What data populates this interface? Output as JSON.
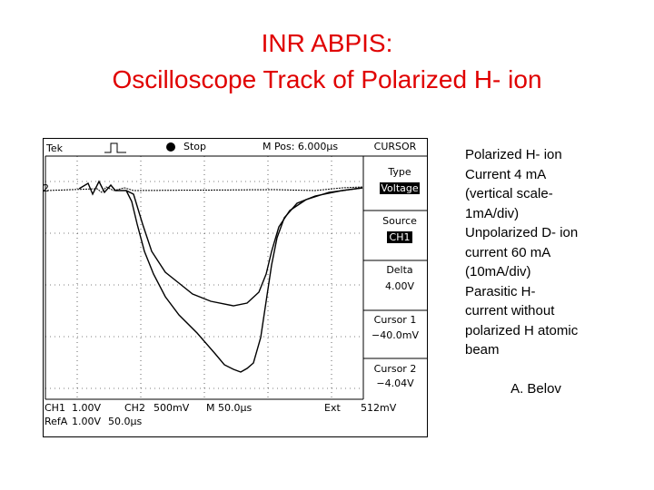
{
  "title": {
    "line1": "INR ABPIS:",
    "line2": "Oscilloscope Track of Polarized H- ion"
  },
  "scope": {
    "brand": "Tek",
    "status": "Stop",
    "position": "M Pos: 6.000µs",
    "channel_marker": "2",
    "menu": [
      "CURSOR",
      "Type",
      "Voltage",
      "Source",
      "CH1",
      "Delta",
      "4.00V",
      "Cursor 1",
      "−40.0mV",
      "Cursor 2",
      "−4.04V"
    ],
    "footer": [
      "CH1",
      "1.00V",
      "CH2",
      "500mV",
      "M 50.0µs",
      "Ext",
      "512mV",
      "RefA",
      "1.00V",
      "50.0µs"
    ]
  },
  "description": {
    "lines": [
      "Polarized H- ion",
      "Current 4 mA",
      "(vertical scale-",
      "1mA/div)",
      "Unpolarized D- ion",
      "current 60 mA",
      "(10mA/div)",
      "Parasitic H-",
      "current without",
      "polarized H atomic",
      "beam"
    ]
  },
  "author": "A. Belov"
}
